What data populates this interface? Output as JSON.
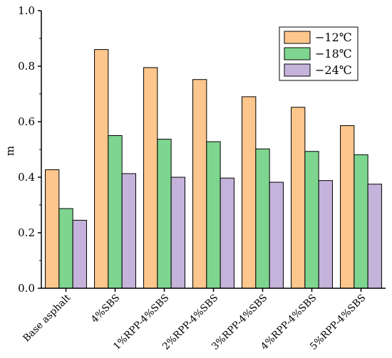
{
  "chart_data": {
    "type": "bar",
    "title": "",
    "xlabel": "",
    "ylabel": "m",
    "ylim": [
      0,
      1.0
    ],
    "yticks": [
      0.0,
      0.2,
      0.4,
      0.6,
      0.8,
      1.0
    ],
    "ytick_labels": [
      "0.0",
      "0.2",
      "0.4",
      "0.6",
      "0.8",
      "1.0"
    ],
    "grid": false,
    "legend_position": "top-right",
    "categories": [
      "Base asphalt",
      "4%SBS",
      "1%RPP-4%SBS",
      "2%RPP-4%SBS",
      "3%RPP-4%SBS",
      "4%RPP-4%SBS",
      "5%RPP-4%SBS"
    ],
    "series": [
      {
        "name": "−12℃",
        "color": "#FDC68C",
        "values": [
          0.427,
          0.86,
          0.795,
          0.752,
          0.69,
          0.652,
          0.586
        ]
      },
      {
        "name": "−18℃",
        "color": "#7ED58F",
        "values": [
          0.287,
          0.55,
          0.537,
          0.528,
          0.502,
          0.493,
          0.481
        ]
      },
      {
        "name": "−24℃",
        "color": "#C5B3DB",
        "values": [
          0.245,
          0.413,
          0.4,
          0.397,
          0.382,
          0.388,
          0.375
        ]
      }
    ]
  }
}
